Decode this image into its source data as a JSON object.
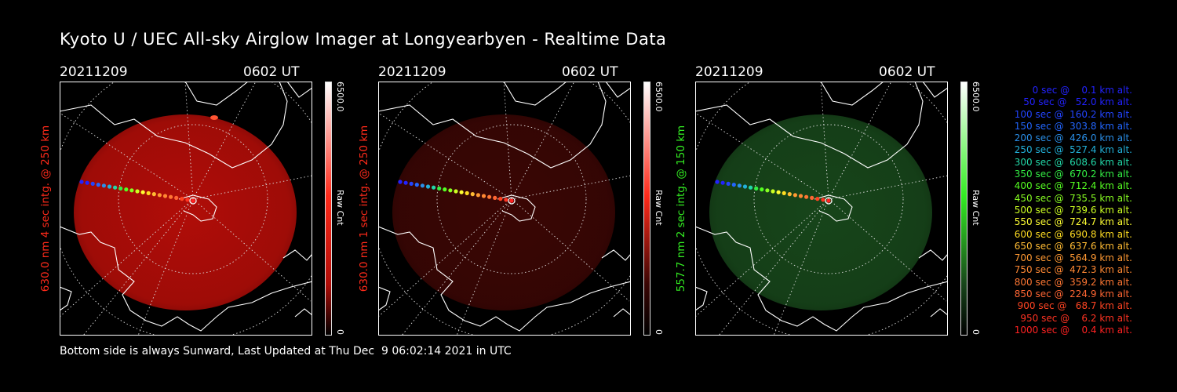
{
  "title": "Kyoto U / UEC All-sky Airglow Imager at Longyearbyen - Realtime Data",
  "panels": [
    {
      "date": "20211209",
      "time": "0602 UT",
      "side_label": "630.0 nm 4 sec intg. @ 250 km",
      "color": "#ff2a1a",
      "glow": "#b00d08",
      "cbar_max": "6500.0",
      "cbar_unit": "Raw Cnt",
      "cbar_min": "0"
    },
    {
      "date": "20211209",
      "time": "0602 UT",
      "side_label": "630.0 nm 1 sec intg. @ 250 km",
      "color": "#ff2a1a",
      "glow": "#3a0604",
      "cbar_max": "6500.0",
      "cbar_unit": "Raw Cnt",
      "cbar_min": "0"
    },
    {
      "date": "20211209",
      "time": "0602 UT",
      "side_label": "557.7 nm 2 sec intg. @ 150 km",
      "color": "#33ee22",
      "glow": "#17451a",
      "cbar_max": "6500.0",
      "cbar_unit": "Raw Cnt",
      "cbar_min": "0"
    }
  ],
  "trajectory": [
    {
      "label": "   0 sec @    0.1 km alt.",
      "color": "#2222ff"
    },
    {
      "label": "  50 sec @   52.0 km alt.",
      "color": "#2222ff"
    },
    {
      "label": " 100 sec @  160.2 km alt.",
      "color": "#2244ff"
    },
    {
      "label": " 150 sec @  303.8 km alt.",
      "color": "#2266ff"
    },
    {
      "label": " 200 sec @  426.0 km alt.",
      "color": "#2a8fe8"
    },
    {
      "label": " 250 sec @  527.4 km alt.",
      "color": "#22b0d8"
    },
    {
      "label": " 300 sec @  608.6 km alt.",
      "color": "#22d8a8"
    },
    {
      "label": " 350 sec @  670.2 km alt.",
      "color": "#33ee44"
    },
    {
      "label": " 400 sec @  712.4 km alt.",
      "color": "#55ff22"
    },
    {
      "label": " 450 sec @  735.5 km alt.",
      "color": "#88ff22"
    },
    {
      "label": " 500 sec @  739.6 km alt.",
      "color": "#ccff22"
    },
    {
      "label": " 550 sec @  724.7 km alt.",
      "color": "#ffff33"
    },
    {
      "label": " 600 sec @  690.8 km alt.",
      "color": "#ffdd22"
    },
    {
      "label": " 650 sec @  637.6 km alt.",
      "color": "#ffbb33"
    },
    {
      "label": " 700 sec @  564.9 km alt.",
      "color": "#ff9933"
    },
    {
      "label": " 750 sec @  472.3 km alt.",
      "color": "#ff8833"
    },
    {
      "label": " 800 sec @  359.2 km alt.",
      "color": "#ff7733"
    },
    {
      "label": " 850 sec @  224.9 km alt.",
      "color": "#ff6633"
    },
    {
      "label": " 900 sec @   68.7 km alt.",
      "color": "#ff4422"
    },
    {
      "label": " 950 sec @    6.2 km alt.",
      "color": "#ff3322"
    },
    {
      "label": "1000 sec @    0.4 km alt.",
      "color": "#ff2222"
    }
  ],
  "footer": "Bottom side is always Sunward, Last Updated at Thu Dec  9 06:02:14 2021 in UTC"
}
